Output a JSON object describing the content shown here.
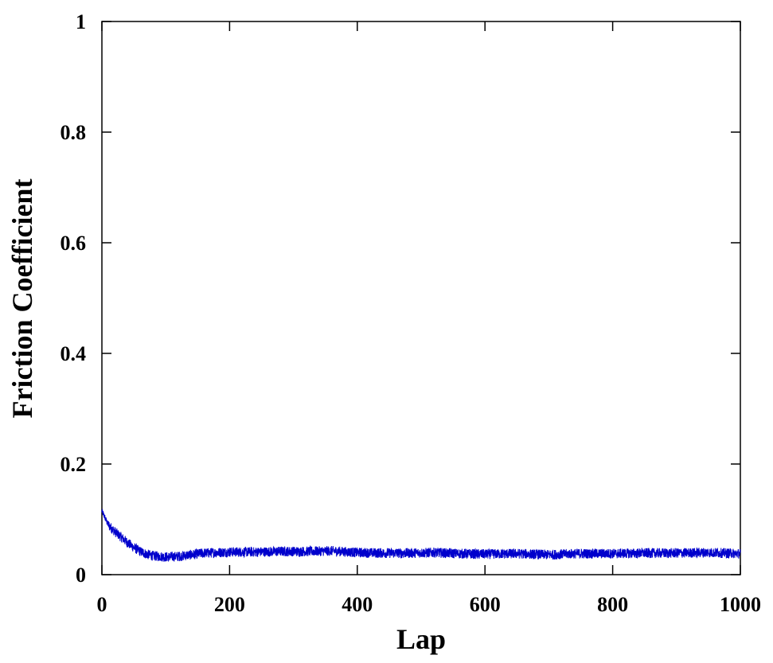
{
  "chart_data": {
    "type": "line",
    "title": "",
    "xlabel": "Lap",
    "ylabel": "Friction Coefficient",
    "xlim": [
      0,
      1000
    ],
    "ylim": [
      0,
      1
    ],
    "x_ticks": [
      0,
      200,
      400,
      600,
      800,
      1000
    ],
    "x_tick_labels": [
      "0",
      "200",
      "400",
      "600",
      "800",
      "1000"
    ],
    "y_ticks": [
      0,
      0.2,
      0.4,
      0.6,
      0.8,
      1
    ],
    "y_tick_labels": [
      "0",
      "0.2",
      "0.4",
      "0.6",
      "0.8",
      "1"
    ],
    "grid": false,
    "legend": "none",
    "series": [
      {
        "color": "#0000cc",
        "x": [
          0,
          10,
          20,
          30,
          40,
          50,
          60,
          70,
          80,
          90,
          100,
          120,
          140,
          160,
          200,
          240,
          280,
          320,
          360,
          400,
          440,
          480,
          520,
          560,
          600,
          650,
          700,
          740,
          800,
          850,
          900,
          950,
          1000
        ],
        "y": [
          0.115,
          0.09,
          0.078,
          0.068,
          0.058,
          0.049,
          0.042,
          0.037,
          0.034,
          0.033,
          0.032,
          0.033,
          0.036,
          0.039,
          0.041,
          0.041,
          0.042,
          0.042,
          0.043,
          0.04,
          0.039,
          0.039,
          0.04,
          0.038,
          0.037,
          0.038,
          0.036,
          0.038,
          0.038,
          0.039,
          0.039,
          0.04,
          0.038
        ],
        "noise_amplitude": 0.009
      }
    ]
  }
}
